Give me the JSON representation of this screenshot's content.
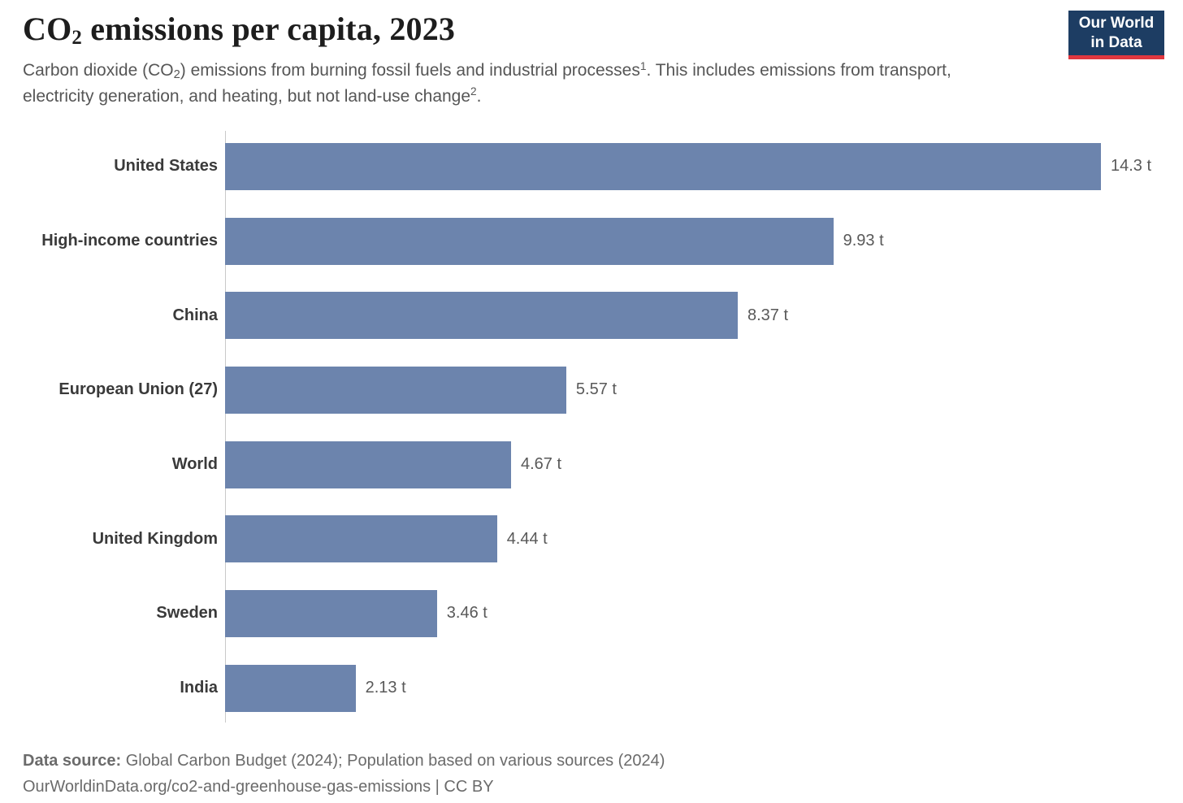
{
  "header": {
    "title_prefix": "CO",
    "title_sub": "2",
    "title_rest": " emissions per capita, 2023",
    "subtitle": {
      "s1": "Carbon dioxide (CO",
      "sub1": "2",
      "s2": ") emissions from burning fossil fuels and industrial processes",
      "sup1": "1",
      "s3": ". This includes emissions from transport, electricity generation, and heating, but not land-use change",
      "sup2": "2",
      "s4": "."
    }
  },
  "logo": {
    "line1": "Our World",
    "line2": "in Data",
    "background_color": "#1d3d63",
    "accent_color": "#e0373f"
  },
  "chart_data": {
    "type": "bar",
    "orientation": "horizontal",
    "title": "CO2 emissions per capita, 2023",
    "unit": "t",
    "categories": [
      "United States",
      "High-income countries",
      "China",
      "European Union (27)",
      "World",
      "United Kingdom",
      "Sweden",
      "India"
    ],
    "values": [
      14.3,
      9.93,
      8.37,
      5.57,
      4.67,
      4.44,
      3.46,
      2.13
    ],
    "value_labels": [
      "14.3 t",
      "9.93 t",
      "8.37 t",
      "5.57 t",
      "4.67 t",
      "4.44 t",
      "3.46 t",
      "2.13 t"
    ],
    "xlim": [
      0,
      14.3
    ],
    "bar_color": "#6c84ad",
    "axis_line_color": "#c9c9c9",
    "grid": false,
    "legend": false
  },
  "footer": {
    "source_label": "Data source:",
    "source_text": " Global Carbon Budget (2024); Population based on various sources (2024)",
    "url": "OurWorldinData.org/co2-and-greenhouse-gas-emissions",
    "separator": " | ",
    "license": "CC BY"
  }
}
